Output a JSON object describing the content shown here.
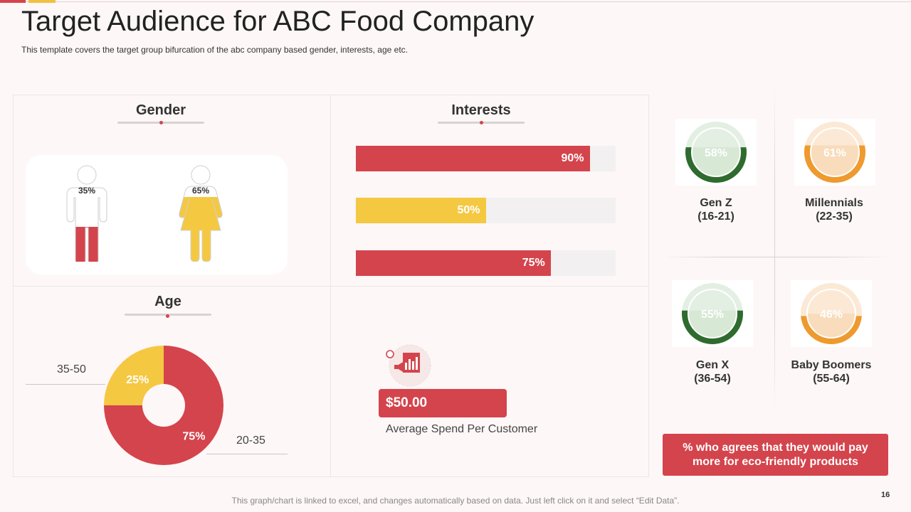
{
  "header": {
    "title": "Target Audience for ABC Food Company",
    "subtitle": "This template covers the target group bifurcation of the abc company based gender, interests, age etc."
  },
  "gender": {
    "title": "Gender",
    "male_pct": "35%",
    "male_fill": 0.35,
    "female_pct": "65%",
    "female_fill": 0.65
  },
  "interests": {
    "title": "Interests",
    "bars": [
      {
        "label": "90%",
        "value": 90,
        "color": "#d4444c"
      },
      {
        "label": "50%",
        "value": 50,
        "color": "#f5c842"
      },
      {
        "label": "75%",
        "value": 75,
        "color": "#d4444c"
      }
    ]
  },
  "age": {
    "title": "Age",
    "label_left": "35-50",
    "label_right": "20-35"
  },
  "chart_data": {
    "type": "pie",
    "categories": [
      "35-50",
      "20-35"
    ],
    "values": [
      25,
      75
    ],
    "labels": [
      "25%",
      "75%"
    ],
    "colors": [
      "#f5c842",
      "#d4444c"
    ],
    "title": "Age"
  },
  "spend": {
    "amount": "$50.00",
    "caption": "Average Spend Per Customer",
    "icon": "megaphone-chart-icon"
  },
  "generations": [
    {
      "pct": "58%",
      "value": 58,
      "name": "Gen Z",
      "range": "(16-21)",
      "color": "#2f6b2f",
      "light": "#e3efe2"
    },
    {
      "pct": "61%",
      "value": 61,
      "name": "Millennials",
      "range": "(22-35)",
      "color": "#ee9a2e",
      "light": "#fbe9d6"
    },
    {
      "pct": "55%",
      "value": 55,
      "name": "Gen X",
      "range": "(36-54)",
      "color": "#2f6b2f",
      "light": "#e3efe2"
    },
    {
      "pct": "46%",
      "value": 46,
      "name": "Baby Boomers",
      "range": "(55-64)",
      "color": "#ee9a2e",
      "light": "#fbe9d6"
    }
  ],
  "eco": {
    "line1": "% who agrees that they would pay",
    "line2": "more for eco-friendly products"
  },
  "footer": {
    "note": "This graph/chart is linked to excel, and changes automatically based on data. Just left click on it and select “Edit Data”.",
    "page": "16"
  },
  "colors": {
    "accent_red": "#d4444c",
    "accent_yellow": "#f5c842",
    "green": "#2f6b2f",
    "orange": "#ee9a2e"
  }
}
